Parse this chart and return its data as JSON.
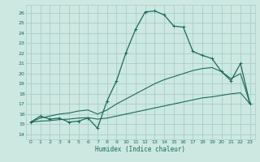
{
  "xlabel": "Humidex (Indice chaleur)",
  "bg_color": "#cce8e0",
  "grid_color": "#aacccc",
  "line_color": "#1a6b5a",
  "xlim": [
    -0.5,
    23.5
  ],
  "ylim": [
    13.5,
    26.8
  ],
  "yticks": [
    14,
    15,
    16,
    17,
    18,
    19,
    20,
    21,
    22,
    23,
    24,
    25,
    26
  ],
  "xticks": [
    0,
    1,
    2,
    3,
    4,
    5,
    6,
    7,
    8,
    9,
    10,
    11,
    12,
    13,
    14,
    15,
    16,
    17,
    18,
    19,
    20,
    21,
    22,
    23
  ],
  "main_y": [
    15.2,
    15.8,
    15.5,
    15.6,
    15.2,
    15.3,
    15.6,
    14.6,
    17.3,
    19.3,
    22.1,
    24.4,
    26.1,
    26.2,
    25.8,
    24.7,
    24.6,
    22.2,
    21.8,
    21.5,
    20.2,
    19.3,
    21.0,
    17.0
  ],
  "line2_y": [
    15.2,
    15.3,
    15.35,
    15.45,
    15.5,
    15.6,
    15.65,
    15.5,
    15.6,
    15.8,
    16.0,
    16.2,
    16.4,
    16.6,
    16.8,
    17.0,
    17.2,
    17.4,
    17.6,
    17.7,
    17.85,
    18.0,
    18.1,
    17.0
  ],
  "line3_y": [
    15.2,
    15.6,
    15.8,
    16.0,
    16.1,
    16.3,
    16.4,
    16.0,
    16.4,
    17.0,
    17.5,
    18.0,
    18.5,
    19.0,
    19.4,
    19.7,
    20.0,
    20.3,
    20.5,
    20.6,
    20.2,
    19.5,
    20.0,
    17.0
  ]
}
